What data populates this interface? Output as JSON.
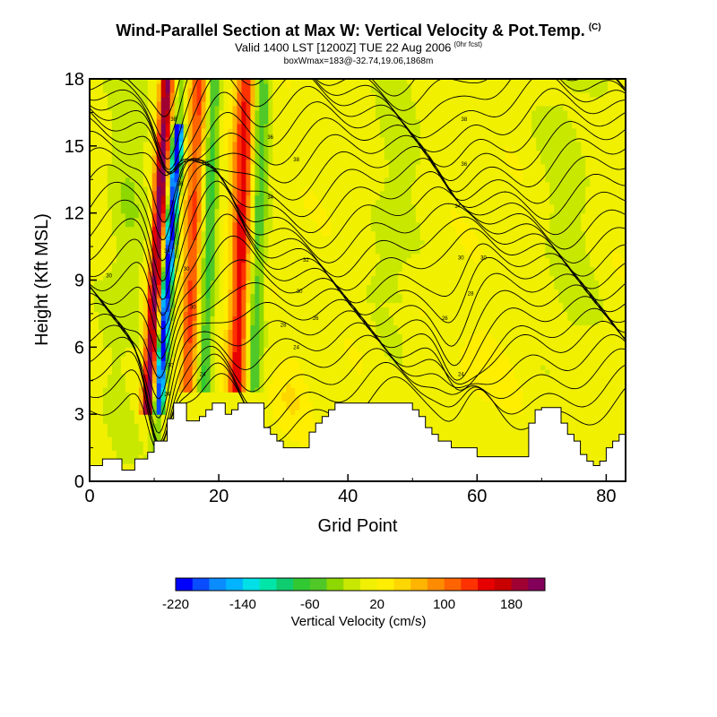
{
  "title": {
    "main": "Wind-Parallel Section at Max W: Vertical Velocity & Pot.Temp.",
    "main_unit": "(C)",
    "valid": "Valid 1400 LST [1200Z] TUE 22 Aug 2006",
    "valid_tag": "(0hr fcst)",
    "box": "boxWmax=183@-32.74,19.06,1868m"
  },
  "chart_data": {
    "type": "heatmap",
    "xlabel": "Grid Point",
    "ylabel": "Height (Kft MSL)",
    "xlim": [
      0,
      83
    ],
    "ylim": [
      0,
      18
    ],
    "x_ticks": [
      0,
      20,
      40,
      60,
      80
    ],
    "y_ticks": [
      0,
      3,
      6,
      9,
      12,
      15,
      18
    ],
    "colorbar": {
      "label": "Vertical Velocity (cm/s)",
      "min": -220,
      "max": 200,
      "step": 20,
      "tick_values": [
        -220,
        -140,
        -60,
        20,
        100,
        180
      ],
      "colors": [
        "#0000ff",
        "#0a4cff",
        "#0a8cff",
        "#00b4ff",
        "#00e0e6",
        "#00e6a8",
        "#10cc70",
        "#32c832",
        "#50c828",
        "#8ed800",
        "#c8e800",
        "#f0f000",
        "#ffee00",
        "#ffd700",
        "#ffb400",
        "#ff8c00",
        "#ff6400",
        "#ff3200",
        "#e60000",
        "#c80000",
        "#a00032",
        "#82005a"
      ]
    },
    "contours": {
      "quantity": "Potential temperature",
      "labels": [
        {
          "x": 3,
          "y": 9.2,
          "text": "30"
        },
        {
          "x": 13,
          "y": 16.2,
          "text": "38"
        },
        {
          "x": 14,
          "y": 13.3,
          "text": "36"
        },
        {
          "x": 12,
          "y": 10.3,
          "text": "34"
        },
        {
          "x": 15,
          "y": 9.5,
          "text": "30"
        },
        {
          "x": 16,
          "y": 7.8,
          "text": "30"
        },
        {
          "x": 12.5,
          "y": 5.2,
          "text": "30"
        },
        {
          "x": 17.5,
          "y": 4.8,
          "text": "24"
        },
        {
          "x": 12,
          "y": 3.9,
          "text": "24"
        },
        {
          "x": 28,
          "y": 15.4,
          "text": "36"
        },
        {
          "x": 32,
          "y": 14.4,
          "text": "38"
        },
        {
          "x": 28,
          "y": 12.7,
          "text": "34"
        },
        {
          "x": 33.5,
          "y": 9.9,
          "text": "32"
        },
        {
          "x": 32.5,
          "y": 8.5,
          "text": "30"
        },
        {
          "x": 30,
          "y": 7.0,
          "text": "28"
        },
        {
          "x": 35,
          "y": 7.3,
          "text": "26"
        },
        {
          "x": 32,
          "y": 6.0,
          "text": "24"
        },
        {
          "x": 58,
          "y": 16.2,
          "text": "38"
        },
        {
          "x": 58,
          "y": 14.2,
          "text": "36"
        },
        {
          "x": 57,
          "y": 12.3,
          "text": "34"
        },
        {
          "x": 57.5,
          "y": 10.0,
          "text": "30"
        },
        {
          "x": 61,
          "y": 10.0,
          "text": "30"
        },
        {
          "x": 59,
          "y": 8.4,
          "text": "28"
        },
        {
          "x": 55,
          "y": 7.3,
          "text": "26"
        },
        {
          "x": 57.5,
          "y": 4.8,
          "text": "24"
        }
      ]
    },
    "terrain_top": [
      [
        0,
        0.7
      ],
      [
        2,
        0.7
      ],
      [
        2,
        1.0
      ],
      [
        5,
        1.0
      ],
      [
        5,
        0.5
      ],
      [
        7,
        0.5
      ],
      [
        7,
        1.0
      ],
      [
        9,
        1.0
      ],
      [
        9,
        1.3
      ],
      [
        10,
        1.3
      ],
      [
        10,
        1.8
      ],
      [
        12,
        1.8
      ],
      [
        12,
        2.8
      ],
      [
        13,
        2.8
      ],
      [
        13,
        3.5
      ],
      [
        15,
        3.5
      ],
      [
        15,
        2.7
      ],
      [
        17,
        2.7
      ],
      [
        17,
        2.9
      ],
      [
        18,
        2.9
      ],
      [
        18,
        3.2
      ],
      [
        19,
        3.2
      ],
      [
        19,
        3.5
      ],
      [
        21,
        3.5
      ],
      [
        21,
        3.0
      ],
      [
        22,
        3.0
      ],
      [
        22,
        3.2
      ],
      [
        23,
        3.2
      ],
      [
        23,
        3.5
      ],
      [
        27,
        3.5
      ],
      [
        27,
        2.4
      ],
      [
        28,
        2.4
      ],
      [
        28,
        2.1
      ],
      [
        29,
        2.1
      ],
      [
        29,
        1.8
      ],
      [
        30,
        1.8
      ],
      [
        30,
        1.5
      ],
      [
        34,
        1.5
      ],
      [
        34,
        2.2
      ],
      [
        35,
        2.2
      ],
      [
        35,
        2.6
      ],
      [
        36,
        2.6
      ],
      [
        36,
        2.9
      ],
      [
        37,
        2.9
      ],
      [
        37,
        3.2
      ],
      [
        38,
        3.2
      ],
      [
        38,
        3.5
      ],
      [
        50,
        3.5
      ],
      [
        50,
        3.2
      ],
      [
        51,
        3.2
      ],
      [
        51,
        2.9
      ],
      [
        52,
        2.9
      ],
      [
        52,
        2.4
      ],
      [
        53,
        2.4
      ],
      [
        53,
        2.1
      ],
      [
        54,
        2.1
      ],
      [
        54,
        1.8
      ],
      [
        56,
        1.8
      ],
      [
        56,
        1.5
      ],
      [
        60,
        1.5
      ],
      [
        60,
        1.1
      ],
      [
        68,
        1.1
      ],
      [
        68,
        2.6
      ],
      [
        69,
        2.6
      ],
      [
        69,
        3.2
      ],
      [
        70,
        3.2
      ],
      [
        70,
        3.3
      ],
      [
        73,
        3.3
      ],
      [
        73,
        2.6
      ],
      [
        74,
        2.6
      ],
      [
        74,
        2.1
      ],
      [
        75,
        2.1
      ],
      [
        75,
        1.8
      ],
      [
        76,
        1.8
      ],
      [
        76,
        1.2
      ],
      [
        77,
        1.2
      ],
      [
        77,
        0.9
      ],
      [
        78,
        0.9
      ],
      [
        78,
        0.7
      ],
      [
        79,
        0.7
      ],
      [
        79,
        0.9
      ],
      [
        80,
        0.9
      ],
      [
        80,
        1.5
      ],
      [
        81,
        1.5
      ],
      [
        81,
        1.8
      ],
      [
        82,
        1.8
      ],
      [
        82,
        2.1
      ],
      [
        83,
        2.1
      ]
    ]
  }
}
